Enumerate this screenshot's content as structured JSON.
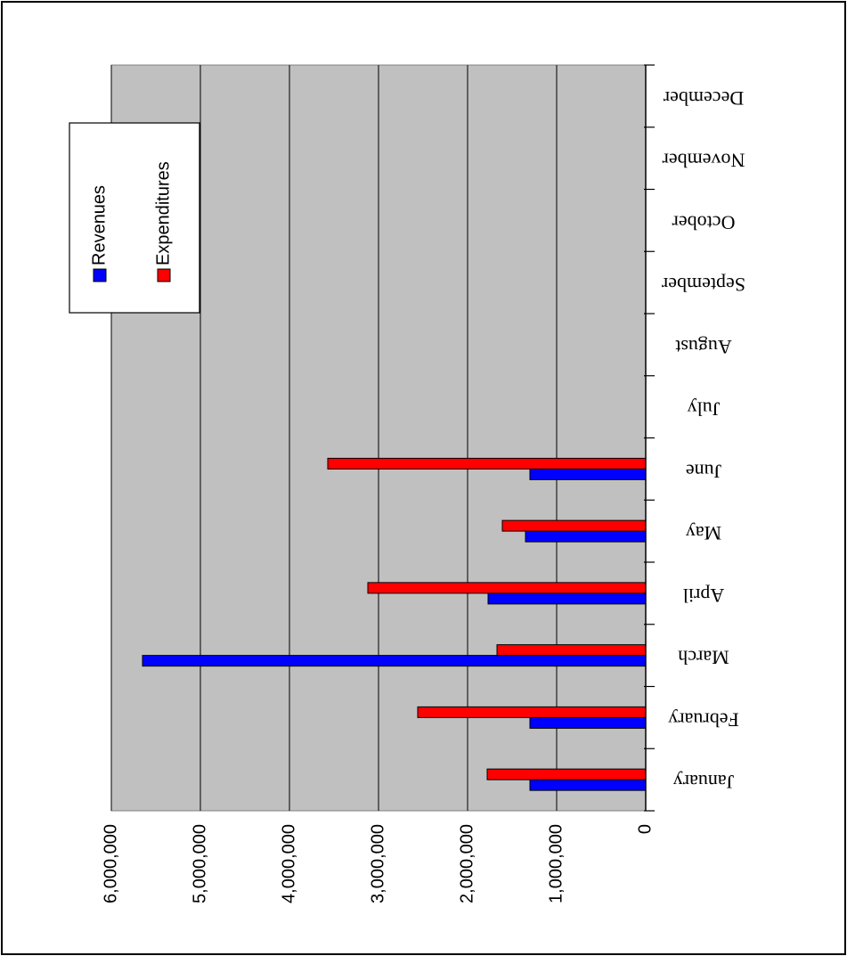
{
  "chart_data": {
    "type": "bar",
    "orientation": "horizontal",
    "categories": [
      "January",
      "February",
      "March",
      "April",
      "May",
      "June",
      "July",
      "August",
      "September",
      "October",
      "November",
      "December"
    ],
    "series": [
      {
        "name": "Revenues",
        "color": "#0000ff",
        "values": [
          1300000,
          1300000,
          5650000,
          1770000,
          1350000,
          1300000,
          null,
          null,
          null,
          null,
          null,
          null
        ]
      },
      {
        "name": "Expenditures",
        "color": "#ff0000",
        "values": [
          1780000,
          2560000,
          1670000,
          3120000,
          1610000,
          3570000,
          null,
          null,
          null,
          null,
          null,
          null
        ]
      }
    ],
    "value_ticks": [
      "0",
      "1,000,000",
      "2,000,000",
      "3,000,000",
      "4,000,000",
      "5,000,000",
      "6,000,000"
    ],
    "ylim": [
      0,
      6000000
    ],
    "grid": true,
    "plot_background": "#c0c0c0",
    "legend": {
      "position": "top-left",
      "entries": [
        "Revenues",
        "Expenditures"
      ]
    },
    "rotation": "180deg"
  }
}
